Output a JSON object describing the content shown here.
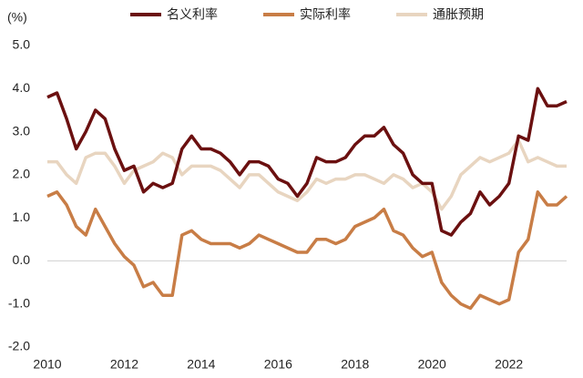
{
  "chart_data": {
    "type": "line",
    "y_label": "(%)",
    "x": [
      2010,
      2010.25,
      2010.5,
      2010.75,
      2011,
      2011.25,
      2011.5,
      2011.75,
      2012,
      2012.25,
      2012.5,
      2012.75,
      2013,
      2013.25,
      2013.5,
      2013.75,
      2014,
      2014.25,
      2014.5,
      2014.75,
      2015,
      2015.25,
      2015.5,
      2015.75,
      2016,
      2016.25,
      2016.5,
      2016.75,
      2017,
      2017.25,
      2017.5,
      2017.75,
      2018,
      2018.25,
      2018.5,
      2018.75,
      2019,
      2019.25,
      2019.5,
      2019.75,
      2020,
      2020.25,
      2020.5,
      2020.75,
      2021,
      2021.25,
      2021.5,
      2021.75,
      2022,
      2022.25,
      2022.5,
      2022.75,
      2023,
      2023.25,
      2023.5
    ],
    "series": [
      {
        "name": "名义利率",
        "color": "#6b1010",
        "values": [
          3.8,
          3.9,
          3.3,
          2.6,
          3.0,
          3.5,
          3.3,
          2.6,
          2.1,
          2.2,
          1.6,
          1.8,
          1.7,
          1.8,
          2.6,
          2.9,
          2.6,
          2.6,
          2.5,
          2.3,
          2.0,
          2.3,
          2.3,
          2.2,
          1.9,
          1.8,
          1.5,
          1.8,
          2.4,
          2.3,
          2.3,
          2.4,
          2.7,
          2.9,
          2.9,
          3.1,
          2.7,
          2.5,
          2.0,
          1.8,
          1.8,
          0.7,
          0.6,
          0.9,
          1.1,
          1.6,
          1.3,
          1.5,
          1.8,
          2.9,
          2.8,
          4.0,
          3.6,
          3.6,
          3.7
        ]
      },
      {
        "name": "实际利率",
        "color": "#c87d46",
        "values": [
          1.5,
          1.6,
          1.3,
          0.8,
          0.6,
          1.2,
          0.8,
          0.4,
          0.1,
          -0.1,
          -0.6,
          -0.5,
          -0.8,
          -0.8,
          0.6,
          0.7,
          0.5,
          0.4,
          0.4,
          0.4,
          0.3,
          0.4,
          0.6,
          0.5,
          0.4,
          0.3,
          0.2,
          0.2,
          0.5,
          0.5,
          0.4,
          0.5,
          0.8,
          0.9,
          1.0,
          1.2,
          0.7,
          0.6,
          0.3,
          0.1,
          0.2,
          -0.5,
          -0.8,
          -1.0,
          -1.1,
          -0.8,
          -0.9,
          -1.0,
          -0.9,
          0.2,
          0.5,
          1.6,
          1.3,
          1.3,
          1.5
        ]
      },
      {
        "name": "通胀预期",
        "color": "#e8d5c0",
        "values": [
          2.3,
          2.3,
          2.0,
          1.8,
          2.4,
          2.5,
          2.5,
          2.2,
          1.8,
          2.1,
          2.2,
          2.3,
          2.5,
          2.4,
          2.0,
          2.2,
          2.2,
          2.2,
          2.1,
          1.9,
          1.7,
          2.0,
          2.0,
          1.8,
          1.6,
          1.5,
          1.4,
          1.6,
          1.9,
          1.8,
          1.9,
          1.9,
          2.0,
          2.0,
          1.9,
          1.8,
          2.0,
          1.9,
          1.7,
          1.8,
          1.6,
          1.2,
          1.5,
          2.0,
          2.2,
          2.4,
          2.3,
          2.4,
          2.5,
          2.8,
          2.3,
          2.4,
          2.3,
          2.2,
          2.2
        ]
      }
    ],
    "xlim": [
      2010,
      2023.5
    ],
    "xticks": [
      2010,
      2012,
      2014,
      2016,
      2018,
      2020,
      2022
    ],
    "ylim": [
      -2,
      5
    ],
    "yticks": [
      {
        "value": 5,
        "label": "5.0"
      },
      {
        "value": 4,
        "label": "4.0"
      },
      {
        "value": 3,
        "label": "3.0"
      },
      {
        "value": 2,
        "label": "2.0"
      },
      {
        "value": 1,
        "label": "1.0"
      },
      {
        "value": 0,
        "label": "0.0"
      },
      {
        "value": -1,
        "label": "-1.0"
      },
      {
        "value": -2,
        "label": "-2.0"
      }
    ],
    "legend": "top"
  }
}
